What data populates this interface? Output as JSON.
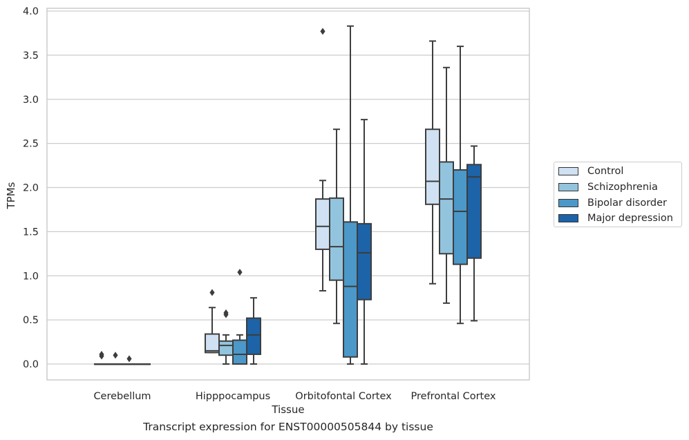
{
  "chart_data": {
    "type": "box",
    "xlabel": "Tissue",
    "ylabel": "TPMs",
    "caption": "Transcript expression for ENST00000505844 by tissue",
    "categories": [
      "Cerebellum",
      "Hipppocampus",
      "Orbitofontal Cortex",
      "Prefrontal Cortex"
    ],
    "ylim": [
      -0.18,
      4.02
    ],
    "yticks": [
      "0.0",
      "0.5",
      "1.0",
      "1.5",
      "2.0",
      "2.5",
      "3.0",
      "3.5",
      "4.0"
    ],
    "grid": "horizontal",
    "legend_position": "right",
    "series": [
      {
        "name": "Control",
        "color": "#cfe1f2",
        "boxes": [
          {
            "whislo": 0.0,
            "q1": 0.0,
            "med": 0.0,
            "q3": 0.0,
            "whishi": 0.0,
            "fliers": [
              0.09,
              0.11
            ]
          },
          {
            "whislo": 0.13,
            "q1": 0.13,
            "med": 0.15,
            "q3": 0.34,
            "whishi": 0.64,
            "fliers": [
              0.81
            ]
          },
          {
            "whislo": 0.83,
            "q1": 1.3,
            "med": 1.56,
            "q3": 1.87,
            "whishi": 2.08,
            "fliers": [
              3.77
            ]
          },
          {
            "whislo": 0.91,
            "q1": 1.81,
            "med": 2.07,
            "q3": 2.66,
            "whishi": 3.66,
            "fliers": []
          }
        ]
      },
      {
        "name": "Schizophrenia",
        "color": "#93c4de",
        "boxes": [
          {
            "whislo": 0.0,
            "q1": 0.0,
            "med": 0.0,
            "q3": 0.0,
            "whishi": 0.0,
            "fliers": [
              0.1
            ]
          },
          {
            "whislo": 0.0,
            "q1": 0.1,
            "med": 0.21,
            "q3": 0.26,
            "whishi": 0.33,
            "fliers": [
              0.56,
              0.58
            ]
          },
          {
            "whislo": 0.46,
            "q1": 0.95,
            "med": 1.33,
            "q3": 1.88,
            "whishi": 2.66,
            "fliers": []
          },
          {
            "whislo": 0.69,
            "q1": 1.25,
            "med": 1.87,
            "q3": 2.29,
            "whishi": 3.36,
            "fliers": []
          }
        ]
      },
      {
        "name": "Bipolar disorder",
        "color": "#4b98c9",
        "boxes": [
          {
            "whislo": 0.0,
            "q1": 0.0,
            "med": 0.0,
            "q3": 0.0,
            "whishi": 0.0,
            "fliers": [
              0.06
            ]
          },
          {
            "whislo": 0.0,
            "q1": 0.0,
            "med": 0.11,
            "q3": 0.27,
            "whishi": 0.33,
            "fliers": [
              1.04
            ]
          },
          {
            "whislo": 0.0,
            "q1": 0.08,
            "med": 0.88,
            "q3": 1.61,
            "whishi": 3.83,
            "fliers": []
          },
          {
            "whislo": 0.46,
            "q1": 1.13,
            "med": 1.73,
            "q3": 2.2,
            "whishi": 3.6,
            "fliers": []
          }
        ]
      },
      {
        "name": "Major depression",
        "color": "#1d63a8",
        "boxes": [
          {
            "whislo": 0.0,
            "q1": 0.0,
            "med": 0.0,
            "q3": 0.0,
            "whishi": 0.0,
            "fliers": []
          },
          {
            "whislo": 0.0,
            "q1": 0.11,
            "med": 0.33,
            "q3": 0.52,
            "whishi": 0.75,
            "fliers": []
          },
          {
            "whislo": 0.0,
            "q1": 0.73,
            "med": 1.26,
            "q3": 1.59,
            "whishi": 2.77,
            "fliers": []
          },
          {
            "whislo": 0.49,
            "q1": 1.2,
            "med": 2.12,
            "q3": 2.26,
            "whishi": 2.47,
            "fliers": []
          }
        ]
      }
    ]
  }
}
